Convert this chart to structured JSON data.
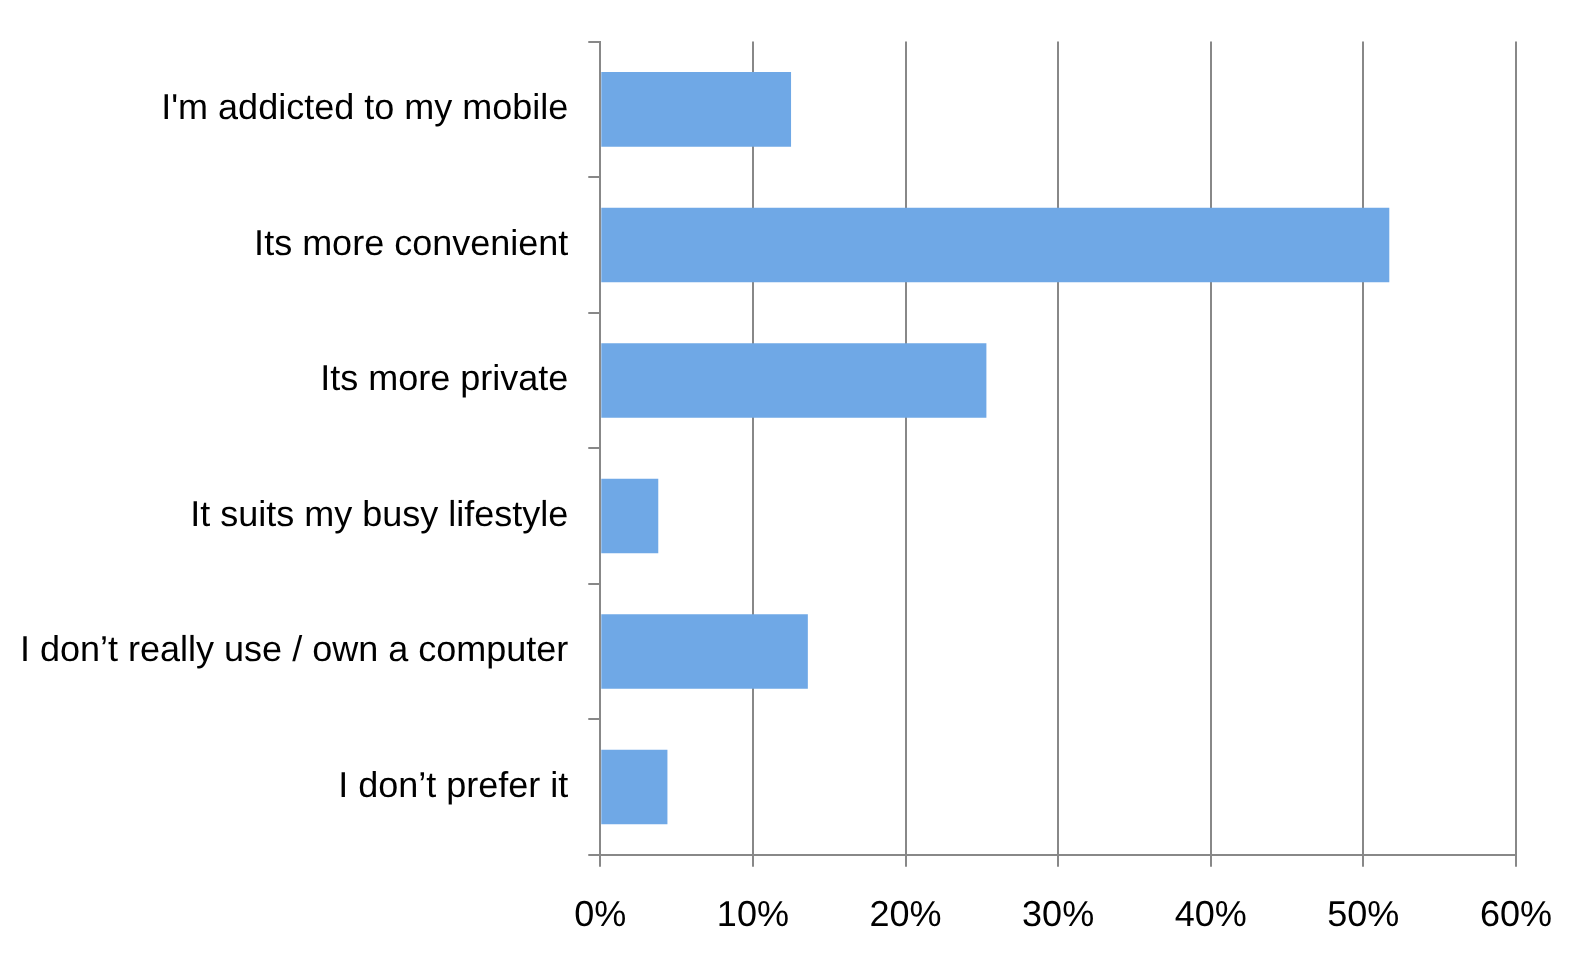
{
  "chart_data": {
    "type": "bar",
    "orientation": "horizontal",
    "categories": [
      "I'm addicted to my mobile",
      "Its more convenient",
      "Its more private",
      "It suits my busy lifestyle",
      "I don’t really use / own a computer",
      "I don’t prefer it"
    ],
    "values": [
      12.5,
      51.7,
      25.3,
      3.8,
      13.6,
      4.4
    ],
    "color": "#6fa8e6",
    "xlim": [
      0,
      60
    ],
    "xticks": [
      {
        "value": 0,
        "label": "0%"
      },
      {
        "value": 10,
        "label": "10%"
      },
      {
        "value": 20,
        "label": "20%"
      },
      {
        "value": 30,
        "label": "30%"
      },
      {
        "value": 40,
        "label": "40%"
      },
      {
        "value": 50,
        "label": "50%"
      },
      {
        "value": 60,
        "label": "60%"
      }
    ],
    "grid": "x",
    "legend": false
  }
}
